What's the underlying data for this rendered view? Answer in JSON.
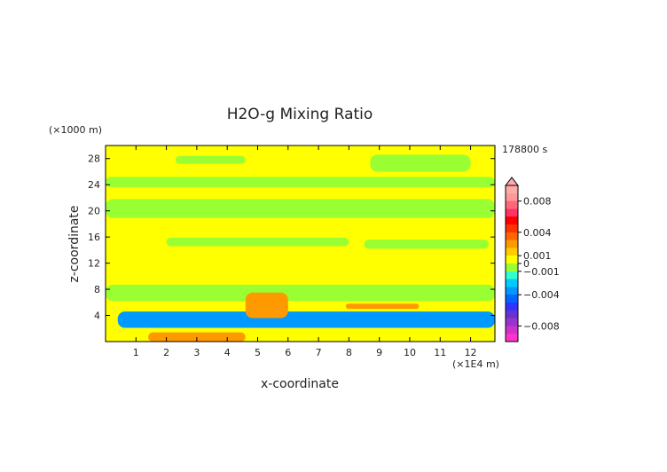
{
  "chart_data": {
    "type": "heatmap",
    "title": "H2O-g Mixing Ratio",
    "xlabel": "x-coordinate",
    "ylabel": "z-coordinate",
    "x_unit": "(×1E4 m)",
    "y_unit": "(×1000 m)",
    "time_label": "178800 s",
    "xlim": [
      0,
      12.8
    ],
    "ylim": [
      0,
      30
    ],
    "x_ticks": [
      1,
      2,
      3,
      4,
      5,
      6,
      7,
      8,
      9,
      10,
      11,
      12
    ],
    "y_ticks": [
      4,
      8,
      12,
      16,
      20,
      24,
      28
    ],
    "colorbar": {
      "labels": [
        "0.008",
        "0.004",
        "0.001",
        "0",
        "−0.001",
        "−0.004",
        "−0.008"
      ],
      "label_values": [
        0.008,
        0.004,
        0.001,
        0,
        -0.001,
        -0.004,
        -0.008
      ],
      "range": [
        -0.01,
        0.01
      ],
      "colors": [
        "#ff33cc",
        "#cc33cc",
        "#9933cc",
        "#6633cc",
        "#3333ff",
        "#0066ff",
        "#0099ff",
        "#00ccff",
        "#33ffcc",
        "#99ff33",
        "#ffff00",
        "#ffcc00",
        "#ff9900",
        "#ff6600",
        "#ff3300",
        "#ff0000",
        "#ff3366",
        "#ff6677",
        "#ff9999",
        "#ffaaaa"
      ]
    },
    "background_color": "#ffff00",
    "regions": [
      {
        "level": "slightly_positive",
        "color": "#99ff33",
        "x": [
          2.3,
          4.6
        ],
        "y": [
          27.2,
          28.4
        ]
      },
      {
        "level": "slightly_positive",
        "color": "#99ff33",
        "x": [
          8.7,
          12.0
        ],
        "y": [
          26.0,
          28.6
        ]
      },
      {
        "level": "slightly_positive",
        "color": "#99ff33",
        "x": [
          0,
          12.8
        ],
        "y": [
          23.6,
          25.2
        ]
      },
      {
        "level": "slightly_positive",
        "color": "#99ff33",
        "x": [
          0,
          12.8
        ],
        "y": [
          18.9,
          21.8
        ]
      },
      {
        "level": "slightly_positive",
        "color": "#99ff33",
        "x": [
          2.0,
          8.0
        ],
        "y": [
          14.6,
          15.9
        ]
      },
      {
        "level": "slightly_positive",
        "color": "#99ff33",
        "x": [
          8.5,
          12.6
        ],
        "y": [
          14.2,
          15.6
        ]
      },
      {
        "level": "slightly_positive",
        "color": "#99ff33",
        "x": [
          0,
          12.8
        ],
        "y": [
          6.2,
          8.7
        ]
      },
      {
        "level": "negative",
        "color": "#0099ff",
        "x": [
          0.4,
          12.8
        ],
        "y": [
          2.1,
          4.6
        ]
      },
      {
        "level": "positive",
        "color": "#ff9900",
        "x": [
          4.6,
          6.0
        ],
        "y": [
          3.6,
          7.5
        ]
      },
      {
        "level": "positive",
        "color": "#ff9900",
        "x": [
          7.9,
          10.3
        ],
        "y": [
          5.0,
          5.8
        ]
      },
      {
        "level": "positive",
        "color": "#ff9900",
        "x": [
          1.4,
          4.6
        ],
        "y": [
          0,
          1.4
        ]
      }
    ]
  }
}
